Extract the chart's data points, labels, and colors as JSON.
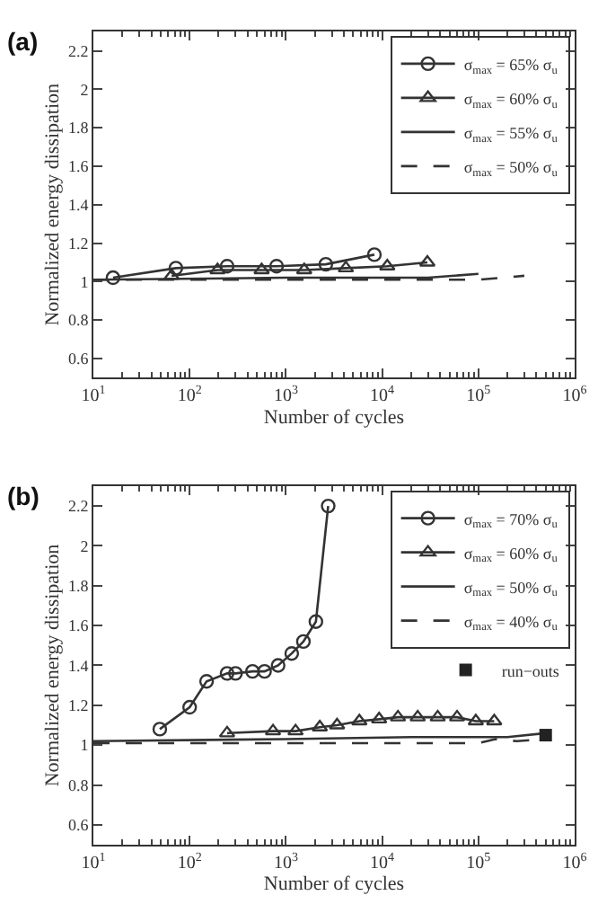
{
  "chart_data": [
    {
      "type": "line",
      "title": "(a)",
      "xlabel": "Number of cycles",
      "ylabel": "Normalized energy dissipation",
      "log": "x",
      "xlim": [
        10,
        1000000
      ],
      "ylim": [
        0.5,
        2.3
      ],
      "xticks": [
        {
          "value": 10,
          "label": "10$^{1}$"
        },
        {
          "value": 100,
          "label": "10$^{2}$"
        },
        {
          "value": 1000,
          "label": "10$^{3}$"
        },
        {
          "value": 10000,
          "label": "10$^{4}$"
        },
        {
          "value": 100000,
          "label": "10$^{5}$"
        },
        {
          "value": 1000000,
          "label": "10$^{6}$"
        }
      ],
      "yticks": [
        0.6,
        0.8,
        1,
        1.2,
        1.4,
        1.6,
        1.8,
        2,
        2.2
      ],
      "legend": "top right",
      "series": [
        {
          "name": "σ$_{max}$ = 65% σ$_{u}$",
          "color": "#333333",
          "marker": "circle",
          "line_style": "solid",
          "x": [
            16,
            72,
            245,
            800,
            2600,
            8300
          ],
          "values": [
            1.02,
            1.07,
            1.08,
            1.08,
            1.09,
            1.14
          ]
        },
        {
          "name": "σ$_{max}$ = 60% σ$_{u}$",
          "color": "#333333",
          "marker": "triangle",
          "line_style": "solid",
          "x": [
            65,
            195,
            560,
            1550,
            4200,
            11300,
            29500
          ],
          "values": [
            1.03,
            1.06,
            1.06,
            1.06,
            1.07,
            1.08,
            1.1
          ]
        },
        {
          "name": "σ$_{max}$ = 55% σ$_{u}$",
          "color": "#333333",
          "marker": "none",
          "line_style": "solid",
          "x": [
            10,
            1000,
            30000,
            100000
          ],
          "values": [
            1.01,
            1.02,
            1.02,
            1.04
          ]
        },
        {
          "name": "σ$_{max}$ = 50% σ$_{u}$",
          "color": "#333333",
          "marker": "none",
          "line_style": "dashed",
          "x": [
            10,
            100000,
            300000
          ],
          "values": [
            1.01,
            1.01,
            1.03
          ]
        }
      ]
    },
    {
      "type": "line",
      "title": "(b)",
      "xlabel": "Number of cycles",
      "ylabel": "Normalized energy dissipation",
      "log": "x",
      "xlim": [
        10,
        1000000
      ],
      "ylim": [
        0.5,
        2.3
      ],
      "xticks": [
        {
          "value": 10,
          "label": "10$^{1}$"
        },
        {
          "value": 100,
          "label": "10$^{2}$"
        },
        {
          "value": 1000,
          "label": "10$^{3}$"
        },
        {
          "value": 10000,
          "label": "10$^{4}$"
        },
        {
          "value": 100000,
          "label": "10$^{5}$"
        },
        {
          "value": 1000000,
          "label": "10$^{6}$"
        }
      ],
      "yticks": [
        0.6,
        0.8,
        1,
        1.2,
        1.4,
        1.6,
        1.8,
        2,
        2.2
      ],
      "legend": "top right",
      "series": [
        {
          "name": "σ$_{max}$ = 70% σ$_{u}$",
          "color": "#333333",
          "marker": "circle",
          "line_style": "solid",
          "x": [
            49,
            100,
            150,
            245,
            300,
            450,
            600,
            830,
            1150,
            1520,
            2050,
            2750
          ],
          "values": [
            1.08,
            1.19,
            1.32,
            1.36,
            1.36,
            1.37,
            1.37,
            1.4,
            1.46,
            1.52,
            1.62,
            2.2
          ]
        },
        {
          "name": "σ$_{max}$ = 60% σ$_{u}$",
          "color": "#333333",
          "marker": "triangle",
          "line_style": "solid",
          "x": [
            245,
            735,
            1260,
            2250,
            3400,
            5800,
            9300,
            14600,
            23400,
            37800,
            60000,
            94000,
            146000
          ],
          "values": [
            1.06,
            1.07,
            1.07,
            1.09,
            1.1,
            1.12,
            1.13,
            1.14,
            1.14,
            1.14,
            1.14,
            1.12,
            1.12
          ]
        },
        {
          "name": "σ$_{max}$ = 50% σ$_{u}$",
          "color": "#333333",
          "marker": "none",
          "line_style": "solid",
          "x": [
            10,
            1000,
            20000,
            200000,
            500000
          ],
          "values": [
            1.02,
            1.03,
            1.04,
            1.04,
            1.06
          ]
        },
        {
          "name": "σ$_{max}$ = 40% σ$_{u}$",
          "color": "#333333",
          "marker": "none",
          "line_style": "dashed",
          "x": [
            10,
            100000,
            150000,
            250000,
            500000
          ],
          "values": [
            1.01,
            1.01,
            1.03,
            1.02,
            1.03
          ]
        },
        {
          "name": "run−outs",
          "type": "scatter",
          "color": "#222222",
          "marker": "square",
          "x": [
            500000
          ],
          "values": [
            1.05
          ]
        }
      ]
    }
  ]
}
